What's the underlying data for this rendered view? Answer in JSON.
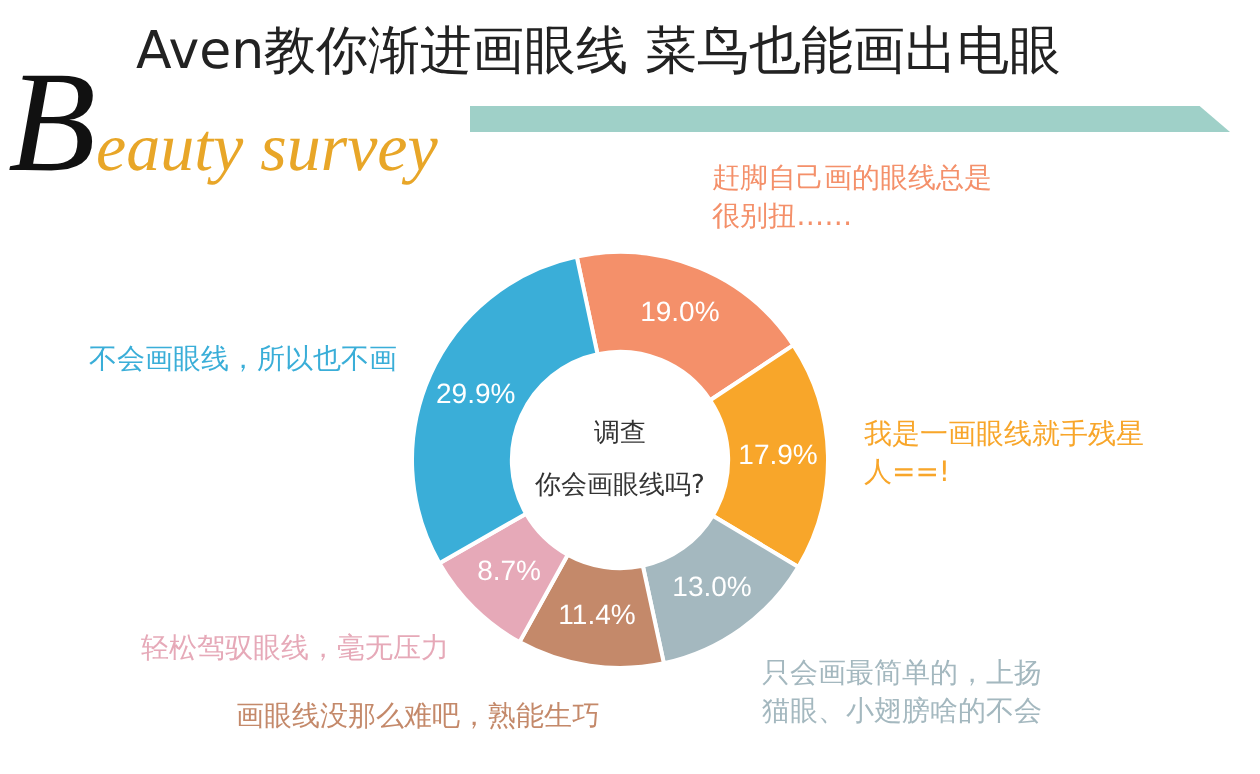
{
  "chart_data": {
    "type": "donut",
    "title": "Aven教你渐进画眼线 菜鸟也能画出电眼",
    "subtitle": "Beauty survey",
    "categories": [
      "赶脚自己画的眼线总是很别扭……",
      "我是一画眼线就手残星人==!",
      "只会画最简单的，上扬猫眼、小翅膀啥的不会",
      "画眼线没那么难吧，熟能生巧",
      "轻松驾驭眼线，毫无压力",
      "不会画眼线，所以也不画"
    ],
    "values": [
      19.0,
      17.9,
      13.0,
      11.4,
      8.7,
      29.9
    ],
    "colors": [
      "#f4906a",
      "#f8a62a",
      "#a4b8bf",
      "#c4896a",
      "#e6a9b8",
      "#3aaed8"
    ],
    "value_labels": [
      "19.0%",
      "17.9%",
      "13.0%",
      "11.4%",
      "8.7%",
      "29.9%"
    ],
    "annotations": [
      "调查",
      "你会画眼线吗?"
    ],
    "legend": false
  }
}
